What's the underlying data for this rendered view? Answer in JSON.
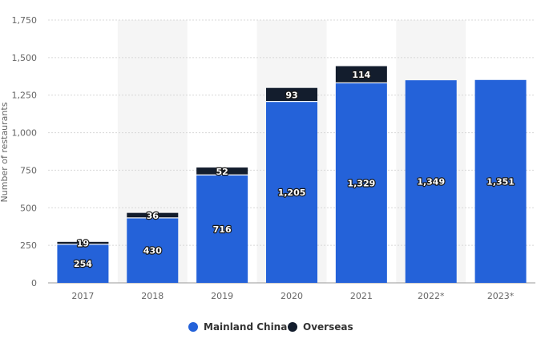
{
  "colors": {
    "mainland": "#2462D9",
    "overseas": "#131D2D",
    "grid": "#d8d8d8",
    "band": "#f5f5f5"
  },
  "chart_data": {
    "type": "bar",
    "stacked": true,
    "categories": [
      "2017",
      "2018",
      "2019",
      "2020",
      "2021",
      "2022*",
      "2023*"
    ],
    "series": [
      {
        "name": "Mainland China",
        "values": [
          254,
          430,
          716,
          1205,
          1329,
          1349,
          1351
        ],
        "labels": [
          "254",
          "430",
          "716",
          "1,205",
          "1,329",
          "1,349",
          "1,351"
        ]
      },
      {
        "name": "Overseas",
        "values": [
          19,
          36,
          52,
          93,
          114,
          null,
          null
        ],
        "labels": [
          "19",
          "36",
          "52",
          "93",
          "114",
          "",
          ""
        ]
      }
    ],
    "ylabel": "Number of restaurants",
    "ylim": [
      0,
      1750
    ],
    "yticks": [
      0,
      250,
      500,
      750,
      1000,
      1250,
      1500,
      1750
    ],
    "ytick_labels": [
      "0",
      "250",
      "500",
      "750",
      "1,000",
      "1,250",
      "1,500",
      "1,750"
    ],
    "grid": true,
    "legend_position": "bottom"
  }
}
